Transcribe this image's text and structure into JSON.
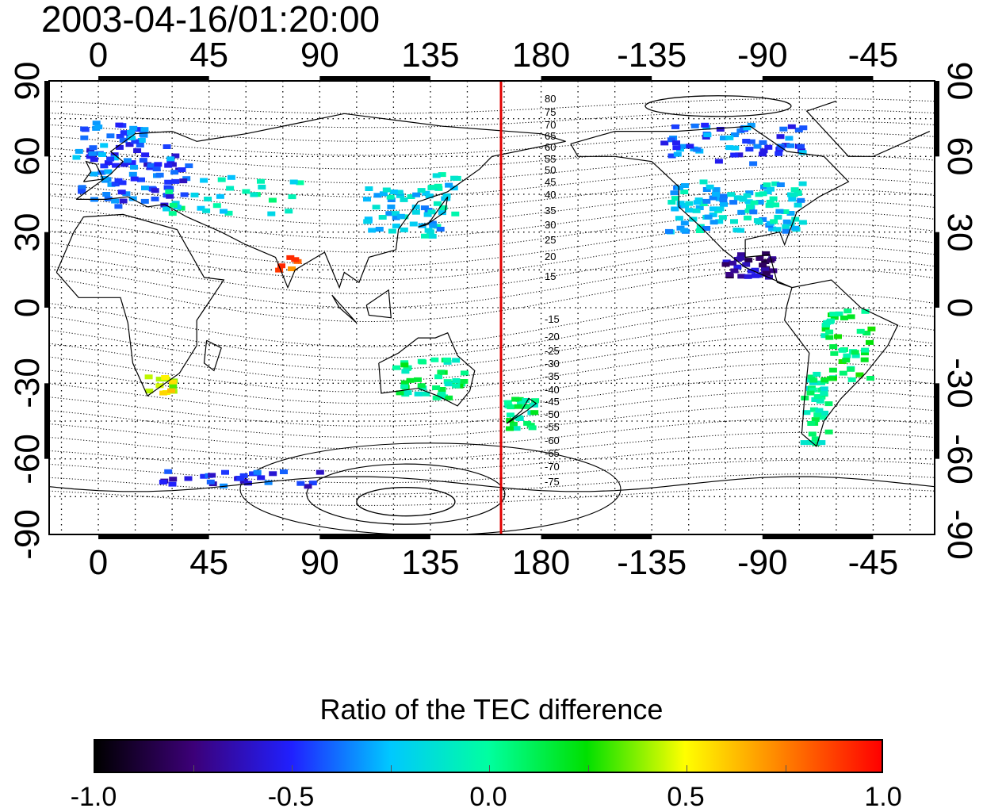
{
  "timestamp": "2003-04-16/01:20:00",
  "axes": {
    "lon_ticks_top": [
      "0",
      "45",
      "90",
      "135",
      "180",
      "-135",
      "-90",
      "-45"
    ],
    "lon_ticks_bottom": [
      "0",
      "45",
      "90",
      "135",
      "180",
      "-135",
      "-90",
      "-45"
    ],
    "lat_ticks_left": [
      "90",
      "60",
      "30",
      "0",
      "-30",
      "-60",
      "-90"
    ],
    "lat_ticks_right": [
      "90",
      "60",
      "30",
      "0",
      "-30",
      "-60",
      "-90"
    ],
    "lon_range": [
      -20,
      340
    ],
    "lat_range": [
      -90,
      90
    ],
    "grid": "dotted 15° graticule"
  },
  "terminator_line": {
    "longitude": 160,
    "color": "#e00000"
  },
  "contour_labels_north": [
    "80",
    "75",
    "70",
    "65",
    "60",
    "55",
    "50",
    "45",
    "40",
    "35",
    "30",
    "25",
    "20",
    "15"
  ],
  "contour_labels_south": [
    "-15",
    "-20",
    "-25",
    "-30",
    "-35",
    "-40",
    "-45",
    "-50",
    "-55",
    "-60",
    "-65",
    "-70",
    "-75"
  ],
  "colorbar": {
    "title": "Ratio of the TEC difference",
    "ticks": [
      "-1.0",
      "-0.5",
      "0.0",
      "0.5",
      "1.0"
    ],
    "range": [
      -1.0,
      1.0
    ],
    "colors": [
      "#000000",
      "#3c0078",
      "#2020ff",
      "#00c8ff",
      "#00ffa0",
      "#00e000",
      "#ffff00",
      "#ff8000",
      "#ff0000"
    ]
  },
  "tec_patches": [
    {
      "region": "Europe",
      "lon": 15,
      "lat": 52,
      "ratio": -0.45
    },
    {
      "region": "Scandinavia",
      "lon": 5,
      "lat": 66,
      "ratio": -0.4
    },
    {
      "region": "Western Asia",
      "lon": 55,
      "lat": 45,
      "ratio": -0.1
    },
    {
      "region": "East Asia",
      "lon": 125,
      "lat": 38,
      "ratio": -0.2
    },
    {
      "region": "Japan",
      "lon": 140,
      "lat": 45,
      "ratio": -0.2
    },
    {
      "region": "North America",
      "lon": -100,
      "lat": 40,
      "ratio": -0.2
    },
    {
      "region": "Canada",
      "lon": -100,
      "lat": 65,
      "ratio": -0.4
    },
    {
      "region": "Mexico",
      "lon": -95,
      "lat": 17,
      "ratio": -0.7
    },
    {
      "region": "South America",
      "lon": -55,
      "lat": -15,
      "ratio": 0.1
    },
    {
      "region": "Southern South America",
      "lon": -68,
      "lat": -40,
      "ratio": 0.0
    },
    {
      "region": "Australia",
      "lon": 135,
      "lat": -28,
      "ratio": 0.05
    },
    {
      "region": "New Zealand",
      "lon": 172,
      "lat": -42,
      "ratio": 0.05
    },
    {
      "region": "South Africa",
      "lon": 25,
      "lat": -30,
      "ratio": 0.5
    },
    {
      "region": "Antarctica coast",
      "lon": 60,
      "lat": -68,
      "ratio": -0.5
    },
    {
      "region": "Indian subcontinent",
      "lon": 78,
      "lat": 18,
      "ratio": 0.8
    }
  ]
}
